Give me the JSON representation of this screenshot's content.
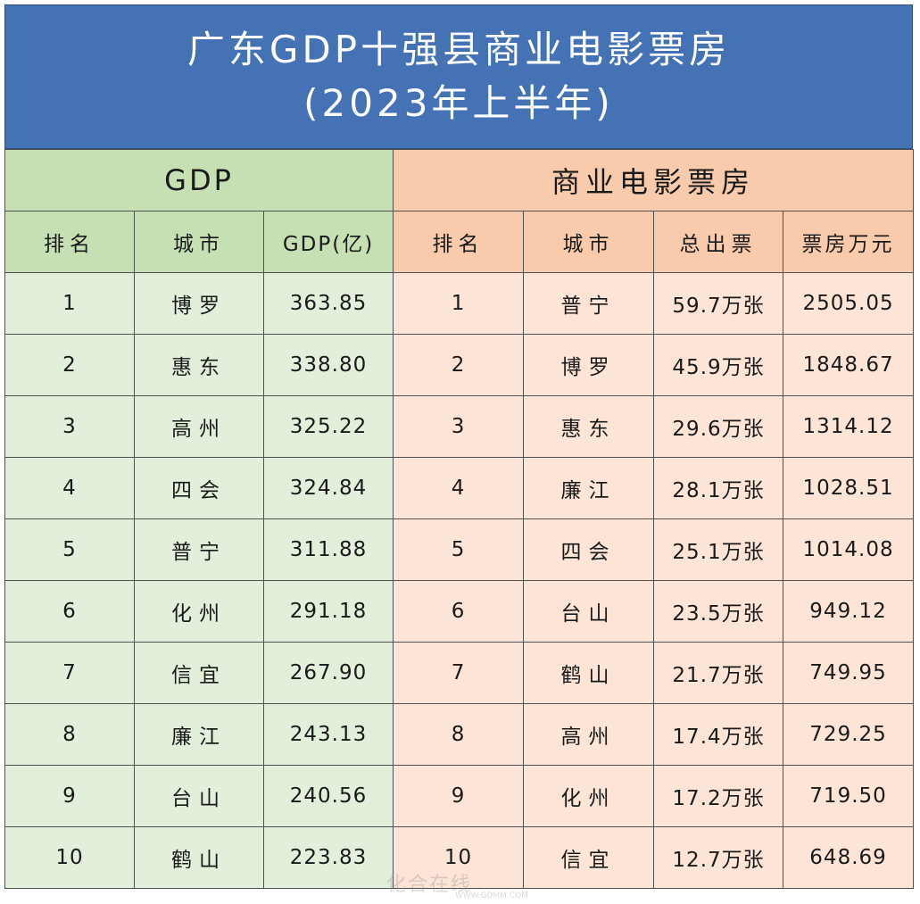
{
  "title": {
    "line1": "广东GDP十强县商业电影票房",
    "line2": "(2023年上半年)"
  },
  "sections": {
    "gdp": "GDP",
    "box_office": "商业电影票房"
  },
  "gdp_headers": [
    "排名",
    "城市",
    "GDP(亿)"
  ],
  "box_headers": [
    "排名",
    "城市",
    "总出票",
    "票房万元"
  ],
  "gdp_rows": [
    {
      "rank": "1",
      "city": "博罗",
      "gdp": "363.85"
    },
    {
      "rank": "2",
      "city": "惠东",
      "gdp": "338.80"
    },
    {
      "rank": "3",
      "city": "高州",
      "gdp": "325.22"
    },
    {
      "rank": "4",
      "city": "四会",
      "gdp": "324.84"
    },
    {
      "rank": "5",
      "city": "普宁",
      "gdp": "311.88"
    },
    {
      "rank": "6",
      "city": "化州",
      "gdp": "291.18"
    },
    {
      "rank": "7",
      "city": "信宜",
      "gdp": "267.90"
    },
    {
      "rank": "8",
      "city": "廉江",
      "gdp": "243.13"
    },
    {
      "rank": "9",
      "city": "台山",
      "gdp": "240.56"
    },
    {
      "rank": "10",
      "city": "鹤山",
      "gdp": "223.83"
    }
  ],
  "box_rows": [
    {
      "rank": "1",
      "city": "普宁",
      "tickets": "59.7万张",
      "revenue": "2505.05"
    },
    {
      "rank": "2",
      "city": "博罗",
      "tickets": "45.9万张",
      "revenue": "1848.67"
    },
    {
      "rank": "3",
      "city": "惠东",
      "tickets": "29.6万张",
      "revenue": "1314.12"
    },
    {
      "rank": "4",
      "city": "廉江",
      "tickets": "28.1万张",
      "revenue": "1028.51"
    },
    {
      "rank": "5",
      "city": "四会",
      "tickets": "25.1万张",
      "revenue": "1014.08"
    },
    {
      "rank": "6",
      "city": "台山",
      "tickets": "23.5万张",
      "revenue": "949.12"
    },
    {
      "rank": "7",
      "city": "鹤山",
      "tickets": "21.7万张",
      "revenue": "749.95"
    },
    {
      "rank": "8",
      "city": "高州",
      "tickets": "17.4万张",
      "revenue": "729.25"
    },
    {
      "rank": "9",
      "city": "化州",
      "tickets": "17.2万张",
      "revenue": "719.50"
    },
    {
      "rank": "10",
      "city": "信宜",
      "tickets": "12.7万张",
      "revenue": "648.69"
    }
  ],
  "watermark": {
    "text": "化合在线",
    "url": "WWW.GDMM.COM"
  },
  "colors": {
    "title_bg": "#4472b4",
    "gdp_header": "#c6e0b4",
    "gdp_cell": "#e2efda",
    "box_header": "#f8cbad",
    "box_cell": "#fce4d6"
  }
}
